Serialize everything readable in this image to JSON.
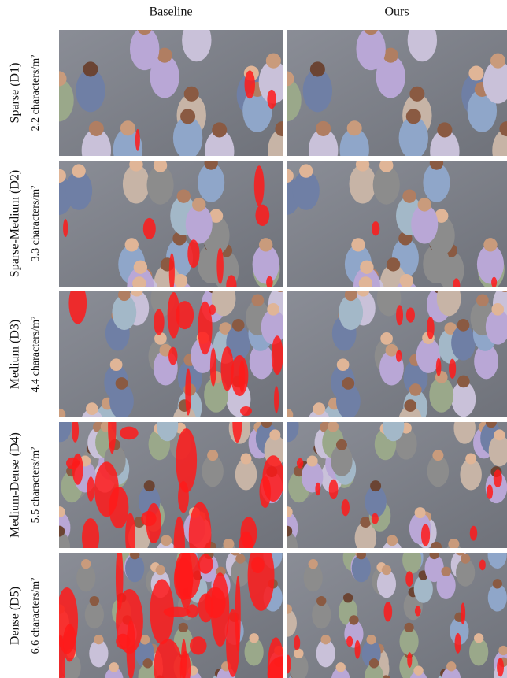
{
  "columns": [
    "Baseline",
    "Ours"
  ],
  "rows": [
    {
      "name": "Sparse (D1)",
      "density": "2.2 characters/m²"
    },
    {
      "name": "Sparse-Medium (D2)",
      "density": "3.3 characters/m²"
    },
    {
      "name": "Medium (D3)",
      "density": "4.4 characters/m²"
    },
    {
      "name": "Medium-Dense (D4)",
      "density": "5.5 characters/m²"
    },
    {
      "name": "Dense (D5)",
      "density": "6.6 characters/m²"
    }
  ]
}
